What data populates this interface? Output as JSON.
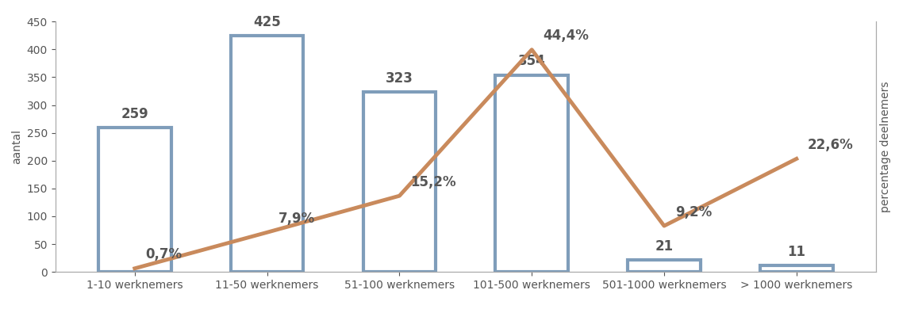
{
  "chart_data": {
    "type": "bar",
    "y_label": "aantal",
    "y2_label": "percentage deelnemers",
    "categories": [
      "1-10 werknemers",
      "11-50 werknemers",
      "51-100 werknemers",
      "101-500 werknemers",
      "501-1000 werknemers",
      "> 1000 werknemers"
    ],
    "series": [
      {
        "type": "bar",
        "color": "#7f9dba",
        "values": [
          259,
          425,
          323,
          354,
          21,
          11
        ],
        "data_labels": true
      },
      {
        "type": "line",
        "axis": "y2",
        "color": "#c98a5c",
        "values": [
          0.7,
          7.9,
          15.2,
          44.4,
          9.2,
          22.6
        ],
        "value_labels": [
          "0,7%",
          "7,9%",
          "15,2%",
          "44,4%",
          "9,2%",
          "22,6%"
        ],
        "data_labels": true
      }
    ],
    "ylim": [
      0,
      450
    ],
    "yticks": [
      0,
      50,
      100,
      150,
      200,
      250,
      300,
      350,
      400,
      450
    ],
    "y2lim": [
      0,
      50
    ],
    "y2ticks": [],
    "tick_labels": "y",
    "grid": false
  }
}
